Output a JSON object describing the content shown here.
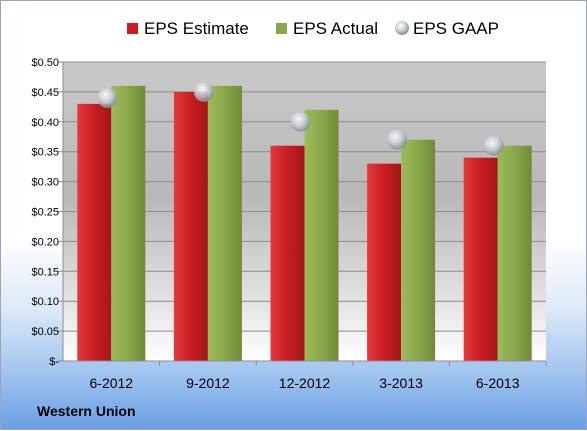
{
  "company": "Western Union",
  "colors": {
    "estimate": "#c81e22",
    "actual": "#8aa84a",
    "gaap": "#b9bfc7"
  },
  "chart_data": {
    "type": "bar",
    "categories": [
      "6-2012",
      "9-2012",
      "12-2012",
      "3-2013",
      "6-2013"
    ],
    "series": [
      {
        "name": "EPS Estimate",
        "values": [
          0.43,
          0.45,
          0.36,
          0.33,
          0.34
        ]
      },
      {
        "name": "EPS Actual",
        "values": [
          0.46,
          0.46,
          0.42,
          0.37,
          0.36
        ]
      },
      {
        "name": "EPS GAAP",
        "values": [
          0.44,
          0.45,
          0.4,
          0.37,
          0.36
        ],
        "marker": "circle"
      }
    ],
    "yticks": [
      "$-",
      "$0.05",
      "$0.10",
      "$0.15",
      "$0.20",
      "$0.25",
      "$0.30",
      "$0.35",
      "$0.40",
      "$0.45",
      "$0.50"
    ],
    "ylim": [
      0,
      0.5
    ],
    "legend": "top",
    "grid": true
  }
}
